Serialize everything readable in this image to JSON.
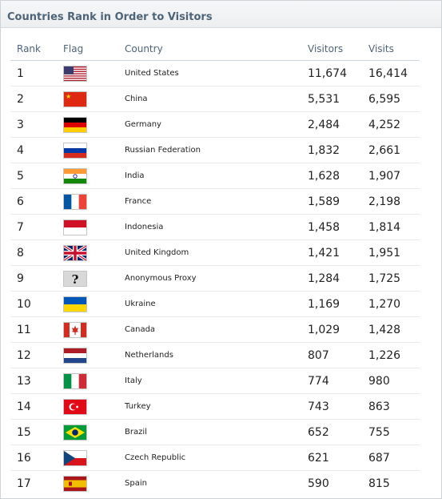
{
  "title": "Countries Rank in Order to Visitors",
  "columns": {
    "rank": "Rank",
    "flag": "Flag",
    "country": "Country",
    "visitors": "Visitors",
    "visits": "Visits"
  },
  "rows": [
    {
      "rank": "1",
      "flag": "us-flag-icon",
      "country": "United States",
      "visitors": "11,674",
      "visits": "16,414"
    },
    {
      "rank": "2",
      "flag": "cn-flag-icon",
      "country": "China",
      "visitors": "5,531",
      "visits": "6,595"
    },
    {
      "rank": "3",
      "flag": "de-flag-icon",
      "country": "Germany",
      "visitors": "2,484",
      "visits": "4,252"
    },
    {
      "rank": "4",
      "flag": "ru-flag-icon",
      "country": "Russian Federation",
      "visitors": "1,832",
      "visits": "2,661"
    },
    {
      "rank": "5",
      "flag": "in-flag-icon",
      "country": "India",
      "visitors": "1,628",
      "visits": "1,907"
    },
    {
      "rank": "6",
      "flag": "fr-flag-icon",
      "country": "France",
      "visitors": "1,589",
      "visits": "2,198"
    },
    {
      "rank": "7",
      "flag": "id-flag-icon",
      "country": "Indonesia",
      "visitors": "1,458",
      "visits": "1,814"
    },
    {
      "rank": "8",
      "flag": "gb-flag-icon",
      "country": "United Kingdom",
      "visitors": "1,421",
      "visits": "1,951"
    },
    {
      "rank": "9",
      "flag": "anonymous-proxy-icon",
      "country": "Anonymous Proxy",
      "visitors": "1,284",
      "visits": "1,725"
    },
    {
      "rank": "10",
      "flag": "ua-flag-icon",
      "country": "Ukraine",
      "visitors": "1,169",
      "visits": "1,270"
    },
    {
      "rank": "11",
      "flag": "ca-flag-icon",
      "country": "Canada",
      "visitors": "1,029",
      "visits": "1,428"
    },
    {
      "rank": "12",
      "flag": "nl-flag-icon",
      "country": "Netherlands",
      "visitors": "807",
      "visits": "1,226"
    },
    {
      "rank": "13",
      "flag": "it-flag-icon",
      "country": "Italy",
      "visitors": "774",
      "visits": "980"
    },
    {
      "rank": "14",
      "flag": "tr-flag-icon",
      "country": "Turkey",
      "visitors": "743",
      "visits": "863"
    },
    {
      "rank": "15",
      "flag": "br-flag-icon",
      "country": "Brazil",
      "visitors": "652",
      "visits": "755"
    },
    {
      "rank": "16",
      "flag": "cz-flag-icon",
      "country": "Czech Republic",
      "visitors": "621",
      "visits": "687"
    },
    {
      "rank": "17",
      "flag": "es-flag-icon",
      "country": "Spain",
      "visitors": "590",
      "visits": "815"
    }
  ]
}
